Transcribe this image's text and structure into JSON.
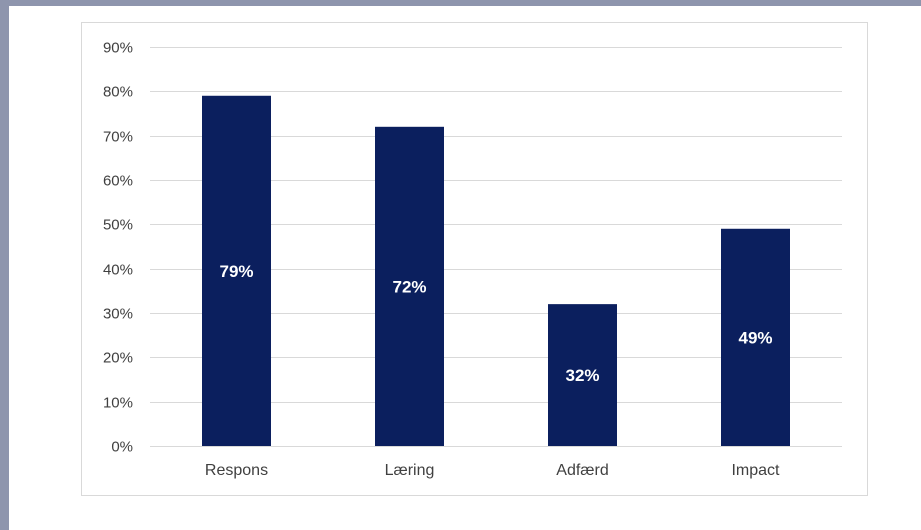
{
  "colors": {
    "bar": "#0b1f5e",
    "gridline": "#d9d9d9",
    "axis_text": "#404040",
    "data_label": "#ffffff",
    "slide_border": "#8e95ad"
  },
  "chart_data": {
    "type": "bar",
    "title": "",
    "xlabel": "",
    "ylabel": "",
    "categories": [
      "Respons",
      "Læring",
      "Adfærd",
      "Impact"
    ],
    "values": [
      79,
      72,
      32,
      49
    ],
    "data_labels": [
      "79%",
      "72%",
      "32%",
      "49%"
    ],
    "ylim": [
      0,
      90
    ],
    "yticks": [
      0,
      10,
      20,
      30,
      40,
      50,
      60,
      70,
      80,
      90
    ],
    "ytick_labels": [
      "0%",
      "10%",
      "20%",
      "30%",
      "40%",
      "50%",
      "60%",
      "70%",
      "80%",
      "90%"
    ],
    "grid": true,
    "legend": "none"
  }
}
